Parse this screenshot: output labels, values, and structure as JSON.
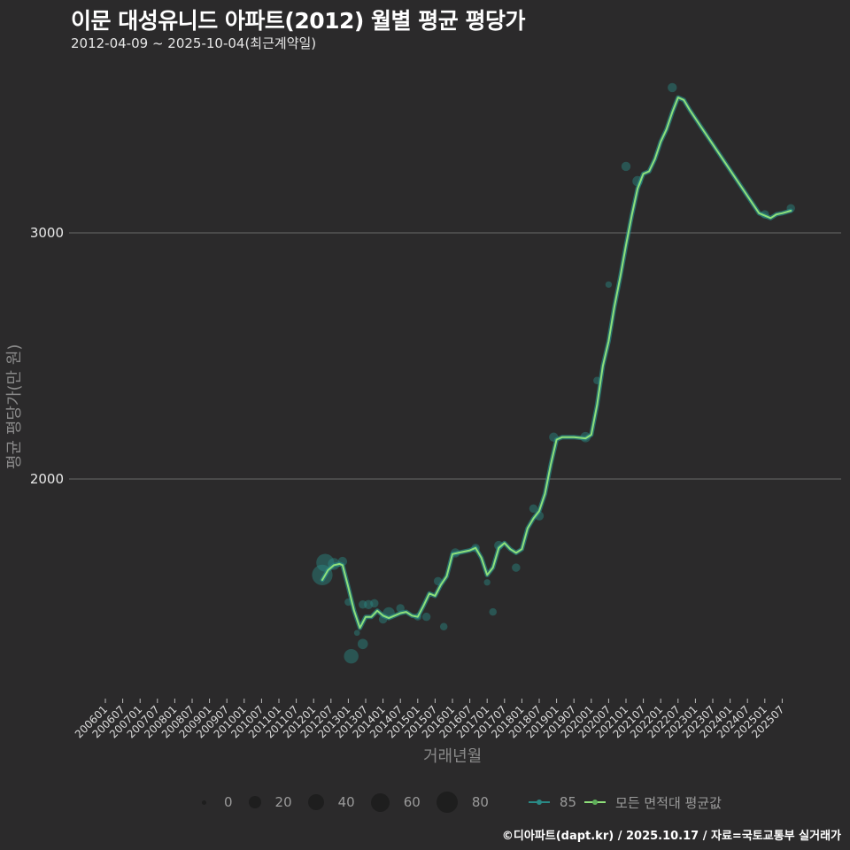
{
  "header": {
    "title": "이문 대성유니드 아파트(2012) 월별 평균 평당가",
    "subtitle": "2012-04-09 ~ 2025-10-04(최근계약일)"
  },
  "footer": {
    "credit": "©디아파트(dapt.kr) / 2025.10.17 / 자료=국토교통부 실거래가"
  },
  "chart_data": {
    "type": "line",
    "title": "이문 대성유니드 아파트(2012) 월별 평균 평당가",
    "subtitle": "2012-04-09 ~ 2025-10-04(최근계약일)",
    "xlabel": "거래년월",
    "ylabel": "평균 평당가(만 원)",
    "yticks": [
      2000,
      3000
    ],
    "ylim": [
      1120,
      3720
    ],
    "xticks": [
      "200601",
      "200607",
      "200701",
      "200707",
      "200801",
      "200807",
      "200901",
      "200907",
      "201001",
      "201007",
      "201101",
      "201107",
      "201201",
      "201207",
      "201301",
      "201307",
      "201401",
      "201407",
      "201501",
      "201507",
      "201601",
      "201607",
      "201701",
      "201707",
      "201801",
      "201807",
      "201901",
      "201907",
      "202001",
      "202007",
      "202101",
      "202107",
      "202201",
      "202207",
      "202301",
      "202307",
      "202401",
      "202407",
      "202501",
      "202507"
    ],
    "grid": {
      "horizontal": true,
      "vertical": false
    },
    "legend": {
      "position": "bottom",
      "size_title": "",
      "size_entries": [
        0,
        20,
        40,
        60,
        80
      ],
      "line_entries": [
        {
          "name": "85",
          "color": "#2a8a86"
        },
        {
          "name": "모든 면적대 평균값",
          "color": "#8ee07a"
        }
      ]
    },
    "series": [
      {
        "name": "모든 면적대 평균값",
        "color": "#8ee07a",
        "x": [
          "2012-04",
          "2012-06",
          "2012-08",
          "2012-10",
          "2012-11",
          "2013-01",
          "2013-03",
          "2013-05",
          "2013-07",
          "2013-09",
          "2013-11",
          "2014-01",
          "2014-03",
          "2014-05",
          "2014-07",
          "2014-09",
          "2014-11",
          "2015-01",
          "2015-03",
          "2015-05",
          "2015-07",
          "2015-09",
          "2015-11",
          "2016-01",
          "2016-03",
          "2016-05",
          "2016-07",
          "2016-09",
          "2016-11",
          "2017-01",
          "2017-03",
          "2017-05",
          "2017-07",
          "2017-09",
          "2017-11",
          "2018-01",
          "2018-03",
          "2018-05",
          "2018-07",
          "2018-09",
          "2018-11",
          "2019-01",
          "2019-03",
          "2019-07",
          "2019-11",
          "2020-01",
          "2020-03",
          "2020-05",
          "2020-07",
          "2020-09",
          "2020-11",
          "2021-01",
          "2021-03",
          "2021-05",
          "2021-07",
          "2021-09",
          "2021-11",
          "2022-01",
          "2022-03",
          "2022-05",
          "2022-07",
          "2022-09",
          "2022-11",
          "2023-03",
          "2023-07",
          "2023-11",
          "2024-03",
          "2024-07",
          "2024-11",
          "2025-03",
          "2025-05",
          "2025-07",
          "2025-10"
        ],
        "values": [
          1590,
          1630,
          1650,
          1655,
          1650,
          1560,
          1465,
          1395,
          1440,
          1440,
          1465,
          1445,
          1435,
          1445,
          1455,
          1460,
          1445,
          1440,
          1485,
          1535,
          1525,
          1570,
          1605,
          1695,
          1700,
          1705,
          1710,
          1720,
          1680,
          1610,
          1640,
          1720,
          1740,
          1715,
          1700,
          1715,
          1800,
          1840,
          1870,
          1940,
          2060,
          2160,
          2170,
          2170,
          2165,
          2180,
          2300,
          2460,
          2560,
          2700,
          2820,
          2950,
          3070,
          3180,
          3240,
          3250,
          3300,
          3370,
          3420,
          3490,
          3550,
          3540,
          3500,
          3430,
          3360,
          3290,
          3220,
          3150,
          3080,
          3060,
          3075,
          3080,
          3090
        ]
      },
      {
        "name": "85",
        "color": "#2a8a86",
        "type": "scatter",
        "note": "per-transaction monthly points, size = number of transactions",
        "points": [
          {
            "x": "2012-04",
            "y": 1610,
            "size": 60
          },
          {
            "x": "2012-05",
            "y": 1660,
            "size": 45
          },
          {
            "x": "2012-08",
            "y": 1655,
            "size": 20
          },
          {
            "x": "2012-11",
            "y": 1665,
            "size": 12
          },
          {
            "x": "2013-01",
            "y": 1500,
            "size": 8
          },
          {
            "x": "2013-02",
            "y": 1280,
            "size": 30
          },
          {
            "x": "2013-04",
            "y": 1375,
            "size": 5
          },
          {
            "x": "2013-06",
            "y": 1490,
            "size": 10
          },
          {
            "x": "2013-06",
            "y": 1330,
            "size": 15
          },
          {
            "x": "2013-08",
            "y": 1490,
            "size": 12
          },
          {
            "x": "2013-10",
            "y": 1495,
            "size": 10
          },
          {
            "x": "2014-01",
            "y": 1430,
            "size": 10
          },
          {
            "x": "2014-03",
            "y": 1455,
            "size": 20
          },
          {
            "x": "2014-07",
            "y": 1475,
            "size": 10
          },
          {
            "x": "2015-01",
            "y": 1440,
            "size": 8
          },
          {
            "x": "2015-04",
            "y": 1440,
            "size": 10
          },
          {
            "x": "2015-08",
            "y": 1585,
            "size": 10
          },
          {
            "x": "2015-10",
            "y": 1400,
            "size": 8
          },
          {
            "x": "2016-02",
            "y": 1700,
            "size": 12
          },
          {
            "x": "2016-09",
            "y": 1720,
            "size": 10
          },
          {
            "x": "2017-01",
            "y": 1580,
            "size": 6
          },
          {
            "x": "2017-03",
            "y": 1460,
            "size": 8
          },
          {
            "x": "2017-05",
            "y": 1730,
            "size": 12
          },
          {
            "x": "2017-11",
            "y": 1640,
            "size": 10
          },
          {
            "x": "2018-05",
            "y": 1880,
            "size": 10
          },
          {
            "x": "2018-07",
            "y": 1850,
            "size": 12
          },
          {
            "x": "2018-12",
            "y": 2170,
            "size": 12
          },
          {
            "x": "2019-11",
            "y": 2170,
            "size": 15
          },
          {
            "x": "2020-03",
            "y": 2400,
            "size": 8
          },
          {
            "x": "2020-07",
            "y": 2790,
            "size": 6
          },
          {
            "x": "2021-01",
            "y": 3270,
            "size": 12
          },
          {
            "x": "2021-05",
            "y": 3210,
            "size": 15
          },
          {
            "x": "2022-05",
            "y": 3590,
            "size": 12
          },
          {
            "x": "2025-01",
            "y": 3075,
            "size": 10
          },
          {
            "x": "2025-10",
            "y": 3100,
            "size": 10
          }
        ]
      }
    ]
  },
  "axes": {
    "y_ticks": [
      {
        "label": "3000"
      },
      {
        "label": "2000"
      }
    ],
    "x_label": "거래년월",
    "y_label": "평균 평당가(만 원)"
  },
  "legend": {
    "sizes": [
      {
        "label": "0"
      },
      {
        "label": "20"
      },
      {
        "label": "40"
      },
      {
        "label": "60"
      },
      {
        "label": "80"
      }
    ],
    "lines": [
      {
        "label": "85"
      },
      {
        "label": "모든 면적대 평균값"
      }
    ]
  }
}
